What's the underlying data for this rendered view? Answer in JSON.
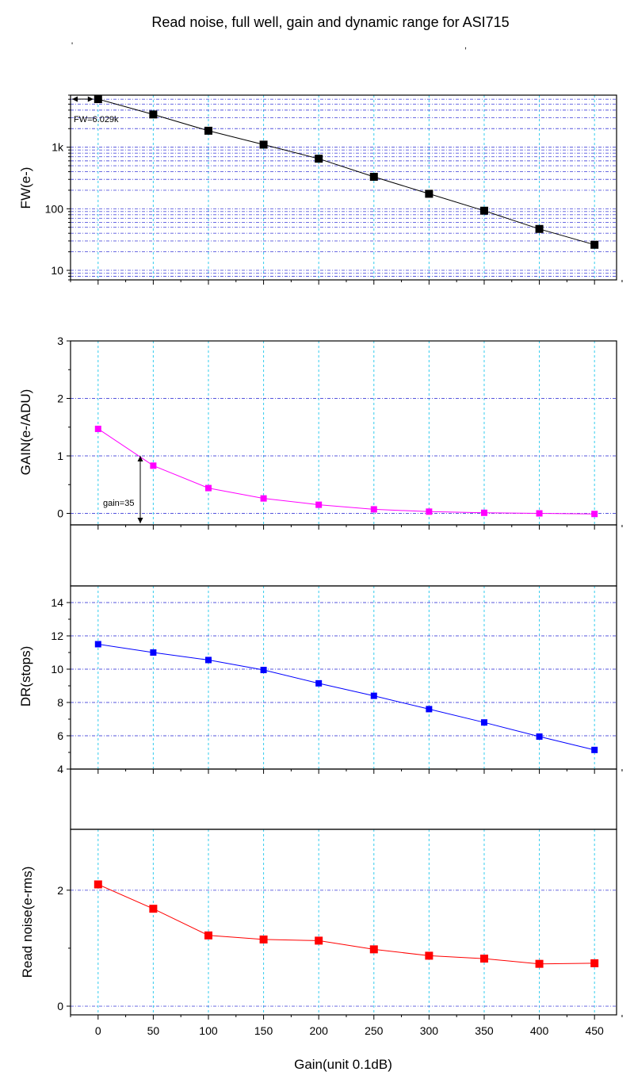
{
  "title": "Read noise, full well, gain and dynamic range for ASI715",
  "chart_data": [
    {
      "id": "fw",
      "type": "line",
      "scale": "log",
      "ylabel": "FW(e-)",
      "ylim": [
        7,
        7000
      ],
      "ytick_values": [
        10,
        100,
        1000
      ],
      "ytick_labels": [
        "10",
        "100",
        "1k"
      ],
      "color": "#000000",
      "x": [
        0,
        50,
        100,
        150,
        200,
        250,
        300,
        350,
        400,
        450
      ],
      "values": [
        6029,
        3400,
        1850,
        1100,
        650,
        330,
        175,
        93,
        47,
        26
      ],
      "annotation": "FW=6.029k"
    },
    {
      "id": "gain",
      "type": "line",
      "scale": "linear",
      "ylabel": "GAIN(e-/ADU)",
      "ylim": [
        -0.2,
        3
      ],
      "ytick_values": [
        0,
        1,
        2,
        3
      ],
      "ytick_labels": [
        "0",
        "1",
        "2",
        "3"
      ],
      "color": "#ff00ff",
      "x": [
        0,
        50,
        100,
        150,
        200,
        250,
        300,
        350,
        400,
        450
      ],
      "values": [
        1.47,
        0.83,
        0.44,
        0.26,
        0.15,
        0.07,
        0.03,
        0.01,
        0.0,
        -0.01
      ],
      "annotation": "gain=35"
    },
    {
      "id": "dr",
      "type": "line",
      "scale": "linear",
      "ylabel": "DR(stops)",
      "ylim": [
        4,
        15
      ],
      "ytick_values": [
        4,
        6,
        8,
        10,
        12,
        14
      ],
      "ytick_labels": [
        "4",
        "6",
        "8",
        "10",
        "12",
        "14"
      ],
      "color": "#0000ff",
      "x": [
        0,
        50,
        100,
        150,
        200,
        250,
        300,
        350,
        400,
        450
      ],
      "values": [
        11.5,
        11.0,
        10.55,
        9.95,
        9.15,
        8.4,
        7.6,
        6.8,
        5.95,
        5.15
      ]
    },
    {
      "id": "rn",
      "type": "line",
      "scale": "linear",
      "ylabel": "Read noise(e-rms)",
      "ylim": [
        -0.15,
        3.05
      ],
      "ytick_values": [
        0,
        2
      ],
      "ytick_labels": [
        "0",
        "2"
      ],
      "color": "#ff0000",
      "x": [
        0,
        50,
        100,
        150,
        200,
        250,
        300,
        350,
        400,
        450
      ],
      "values": [
        2.1,
        1.68,
        1.22,
        1.15,
        1.13,
        0.98,
        0.87,
        0.82,
        0.73,
        0.74
      ]
    }
  ],
  "xaxis": {
    "xlabel": "Gain(unit 0.1dB)",
    "xlim": [
      -25,
      470
    ],
    "tick_values": [
      0,
      50,
      100,
      150,
      200,
      250,
      300,
      350,
      400,
      450
    ],
    "tick_labels": [
      "0",
      "50",
      "100",
      "150",
      "200",
      "250",
      "300",
      "350",
      "400",
      "450"
    ]
  }
}
